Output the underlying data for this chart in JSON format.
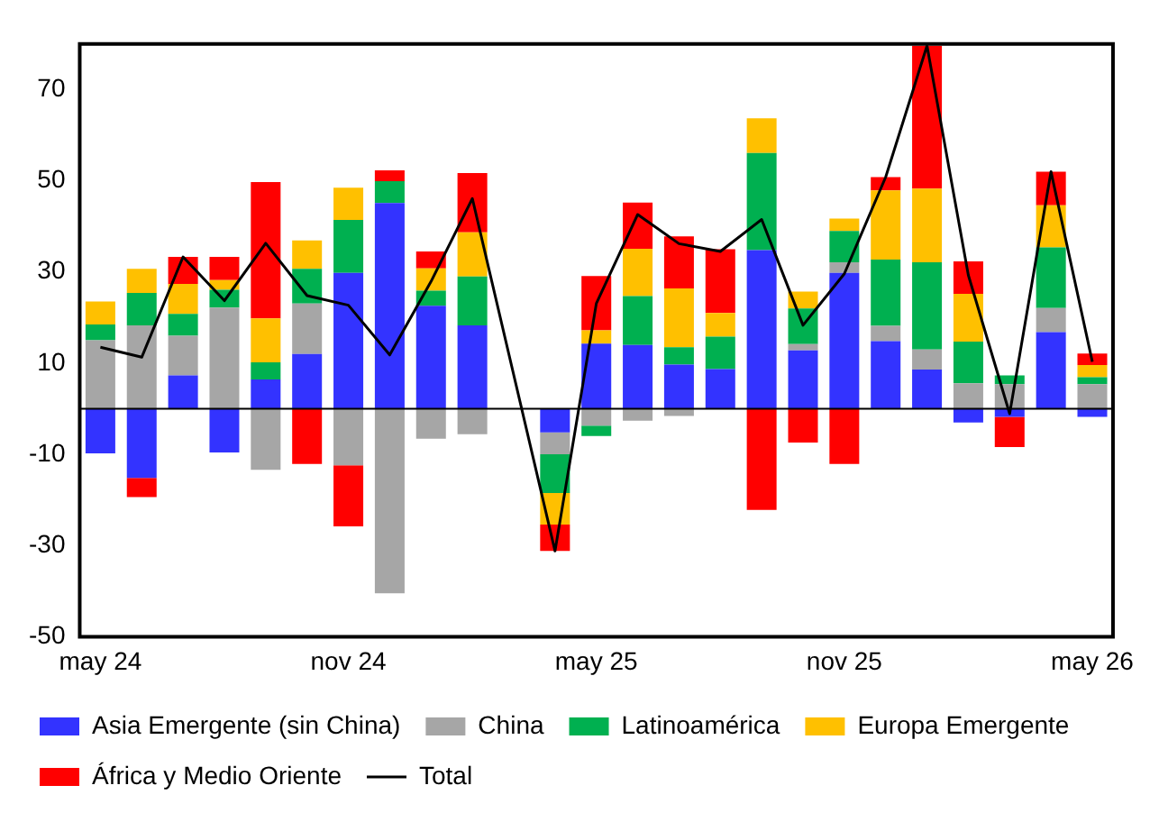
{
  "chart_data": {
    "type": "bar",
    "stacked": true,
    "legend": "bottom",
    "grid": false,
    "categories": [
      "may 24",
      null,
      null,
      null,
      null,
      null,
      "nov 24",
      null,
      null,
      null,
      null,
      null,
      "may 25",
      null,
      null,
      null,
      null,
      null,
      "nov 25",
      null,
      null,
      null,
      null,
      null,
      "may 26"
    ],
    "ylim": [
      -50,
      80
    ],
    "yticks": [
      -50,
      -30,
      -10,
      10,
      30,
      50,
      70
    ],
    "series": [
      {
        "name": "Asia Emergente (sin China)",
        "color": "#3333ff",
        "values": [
          -9.8,
          -15.2,
          7.3,
          -9.6,
          6.4,
          12.0,
          29.8,
          45.1,
          22.6,
          18.3,
          null,
          -5.2,
          14.3,
          14.0,
          9.7,
          8.7,
          34.8,
          12.8,
          29.8,
          14.8,
          8.6,
          -3.0,
          -1.8,
          16.8,
          -1.8
        ]
      },
      {
        "name": "China",
        "color": "#a6a6a6",
        "values": [
          15.0,
          18.3,
          8.7,
          22.2,
          -13.4,
          11.1,
          -12.4,
          -40.5,
          -6.6,
          -5.6,
          null,
          -4.8,
          -3.7,
          -2.6,
          -1.6,
          null,
          null,
          1.4,
          2.3,
          3.4,
          4.4,
          5.6,
          5.4,
          5.3,
          5.4
        ]
      },
      {
        "name": "Latinoamérica",
        "color": "#00b050",
        "values": [
          3.5,
          7.1,
          4.8,
          3.9,
          3.8,
          7.6,
          11.6,
          4.8,
          3.3,
          10.7,
          null,
          -8.5,
          -2.3,
          10.7,
          3.8,
          7.1,
          21.3,
          7.8,
          6.9,
          14.5,
          19.1,
          9.1,
          1.9,
          13.3,
          1.5
        ]
      },
      {
        "name": "Europa Emergente",
        "color": "#ffc000",
        "values": [
          5.0,
          5.3,
          6.6,
          2.1,
          9.6,
          6.2,
          7.1,
          null,
          4.9,
          9.7,
          null,
          -6.9,
          2.9,
          10.4,
          12.9,
          5.2,
          7.6,
          3.7,
          2.7,
          15.2,
          16.2,
          10.5,
          null,
          9.2,
          2.7
        ]
      },
      {
        "name": "África y Medio Oriente",
        "color": "#ff0000",
        "values": [
          null,
          -4.2,
          5.9,
          5.1,
          29.9,
          -12.1,
          -13.4,
          2.4,
          3.7,
          13.0,
          null,
          -5.8,
          11.9,
          10.1,
          11.4,
          14.0,
          -22.2,
          -7.4,
          -12.1,
          2.9,
          31.3,
          7.1,
          -6.6,
          7.4,
          2.5
        ]
      },
      {
        "name": "Total",
        "type": "line",
        "color": "#000000",
        "values": [
          13.5,
          11.3,
          33.3,
          23.7,
          36.3,
          24.8,
          22.7,
          11.8,
          27.9,
          46.1,
          null,
          -31.2,
          23.1,
          42.6,
          36.2,
          34.5,
          41.5,
          18.3,
          29.6,
          50.8,
          79.6,
          29.3,
          -1.1,
          52.0,
          10.3
        ]
      }
    ]
  }
}
